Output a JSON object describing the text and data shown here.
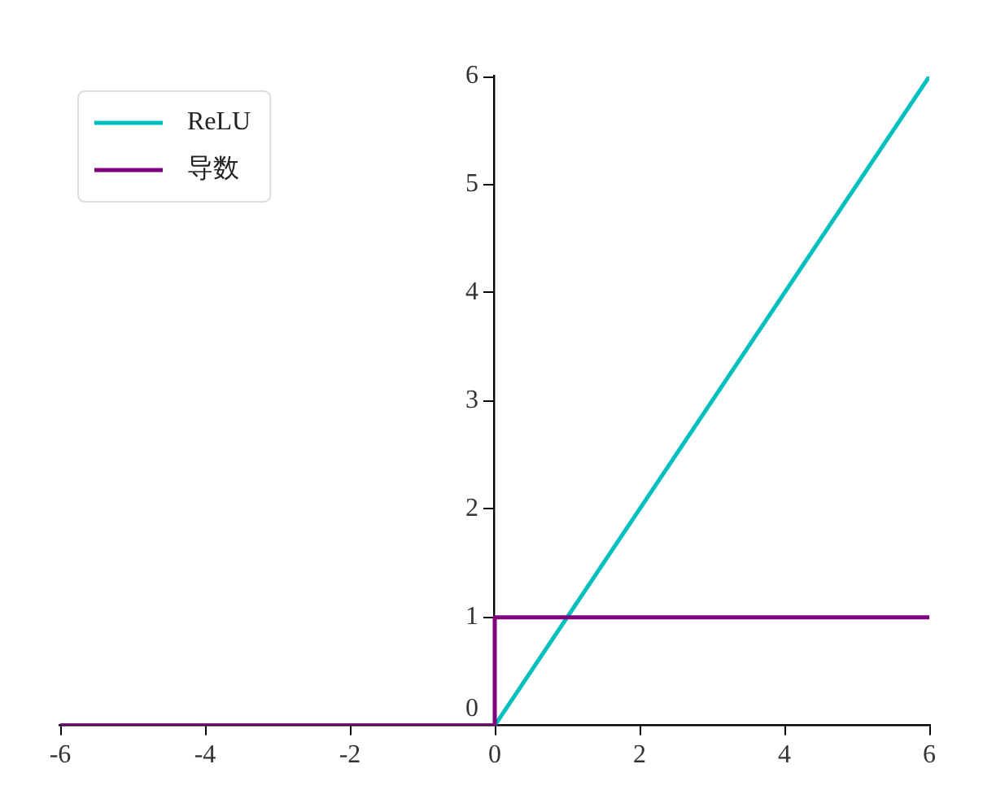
{
  "chart_data": {
    "type": "line",
    "series": [
      {
        "name": "ReLU",
        "color": "#00bfbf",
        "x": [
          0,
          6
        ],
        "values": [
          0,
          6
        ]
      },
      {
        "name": "导数",
        "color": "#800080",
        "x": [
          -6,
          0,
          0,
          6
        ],
        "values": [
          0,
          0,
          1,
          1
        ]
      }
    ],
    "xlim": [
      -6,
      6
    ],
    "xticks": [
      -6,
      -4,
      -2,
      0,
      2,
      4,
      6
    ],
    "ylim": [
      0,
      6
    ],
    "yticks": [
      0,
      1,
      2,
      3,
      4,
      5,
      6
    ],
    "legend": "top left",
    "marker": "none",
    "line_style": "solid"
  }
}
